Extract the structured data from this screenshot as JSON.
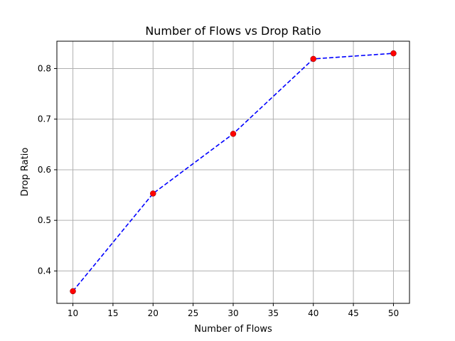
{
  "chart_data": {
    "type": "scatter",
    "title": "Number of Flows vs Drop Ratio",
    "xlabel": "Number of Flows",
    "ylabel": "Drop Ratio",
    "x": [
      10,
      20,
      30,
      40,
      50
    ],
    "series": [
      {
        "values": [
          0.36,
          0.553,
          0.671,
          0.819,
          0.83
        ]
      }
    ],
    "xlim": [
      8,
      52
    ],
    "ylim": [
      0.336,
      0.854
    ],
    "xticks": [
      10,
      15,
      20,
      25,
      30,
      35,
      40,
      45,
      50
    ],
    "yticks": [
      0.4,
      0.5,
      0.6,
      0.7,
      0.8
    ],
    "grid": true,
    "line_style": "dashed",
    "marker": "circle",
    "colors": {
      "line": "#0000ff",
      "marker": "#ff0000"
    }
  }
}
